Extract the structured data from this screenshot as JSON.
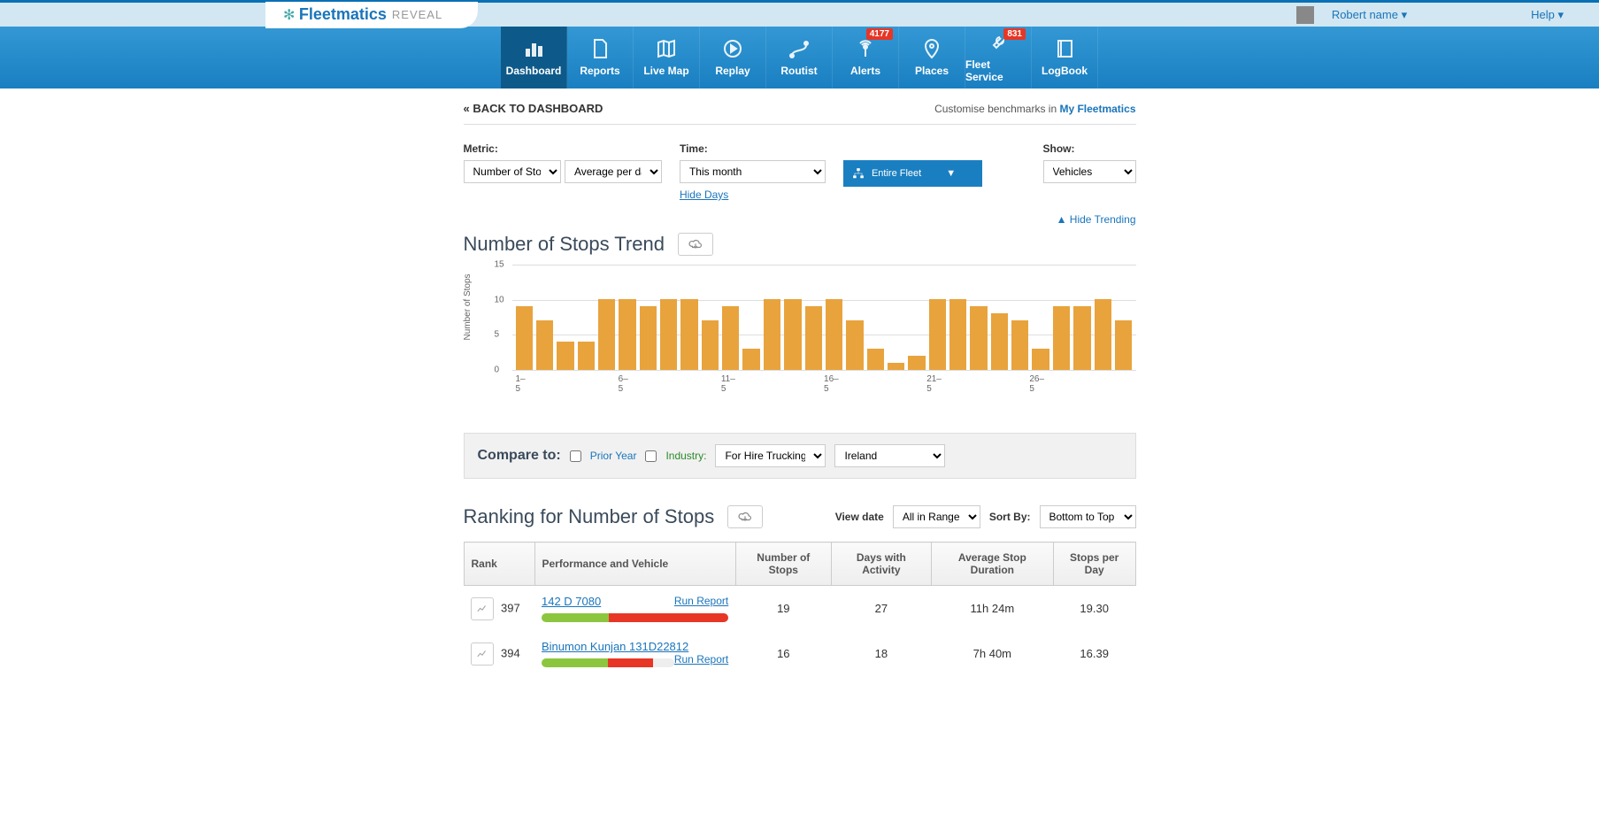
{
  "header": {
    "logo_main": "Fleetmatics",
    "logo_sub": "REVEAL",
    "user_name": "Robert name",
    "help_label": "Help"
  },
  "nav": {
    "items": [
      {
        "label": "Dashboard",
        "badge": null
      },
      {
        "label": "Reports",
        "badge": null
      },
      {
        "label": "Live Map",
        "badge": null
      },
      {
        "label": "Replay",
        "badge": null
      },
      {
        "label": "Routist",
        "badge": null
      },
      {
        "label": "Alerts",
        "badge": "4177"
      },
      {
        "label": "Places",
        "badge": null
      },
      {
        "label": "Fleet Service",
        "badge": "831"
      },
      {
        "label": "LogBook",
        "badge": null
      }
    ]
  },
  "back_link": "« BACK TO DASHBOARD",
  "customise_text": "Customise benchmarks in ",
  "customise_link": "My Fleetmatics",
  "filters": {
    "metric_label": "Metric:",
    "metric_sel1": "Number of Stops",
    "metric_sel2": "Average per day",
    "time_label": "Time:",
    "time_sel": "This month",
    "hide_days": "Hide Days",
    "fleet_btn": "Entire Fleet",
    "show_label": "Show:",
    "show_sel": "Vehicles"
  },
  "hide_trending": "▲  Hide Trending",
  "chart": {
    "title": "Number of Stops Trend",
    "ylabel": "Number of Stops",
    "ymax": 15,
    "ytick_step": 5,
    "bar_color": "#e8a33d",
    "background_color": "#ffffff",
    "grid_color": "#dddddd",
    "values": [
      9,
      7,
      4,
      4,
      10,
      10,
      9,
      10,
      10,
      7,
      9,
      3,
      10,
      10,
      9,
      10,
      7,
      3,
      1,
      2,
      10,
      10,
      9,
      8,
      7,
      3,
      9,
      9,
      10,
      7
    ],
    "x_major_labels": [
      "1–\n5",
      "6–\n5",
      "11–\n5",
      "16–\n5",
      "21–\n5",
      "26–\n5"
    ]
  },
  "compare": {
    "label": "Compare to:",
    "prior_year": "Prior Year",
    "industry": "Industry:",
    "industry_sel": "For Hire Trucking",
    "country_sel": "Ireland"
  },
  "ranking": {
    "title": "Ranking for Number of Stops",
    "view_date_label": "View date",
    "view_date_sel": "All in Range",
    "sort_label": "Sort By:",
    "sort_sel": "Bottom to Top",
    "columns": [
      "Rank",
      "Performance and Vehicle",
      "Number of Stops",
      "Days with Activity",
      "Average Stop Duration",
      "Stops per Day"
    ],
    "run_report_label": "Run Report",
    "rows": [
      {
        "rank": "397",
        "vehicle": "142 D 7080",
        "stops": "19",
        "days": "27",
        "duration": "11h 24m",
        "spd": "19.30",
        "green_pct": 36,
        "red_pct": 64
      },
      {
        "rank": "394",
        "vehicle": "Binumon Kunjan 131D22812",
        "stops": "16",
        "days": "18",
        "duration": "7h 40m",
        "spd": "16.39",
        "green_pct": 50,
        "red_pct": 34
      }
    ]
  }
}
